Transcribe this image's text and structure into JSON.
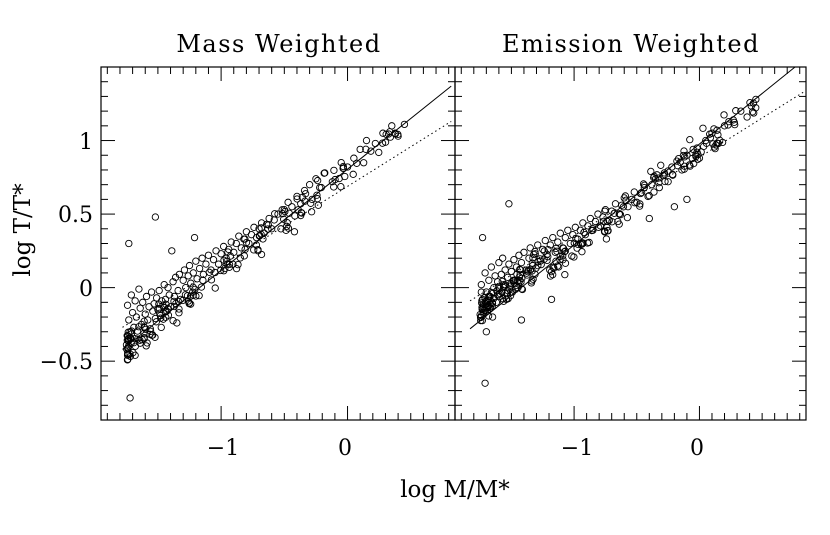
{
  "chart_data": [
    {
      "type": "scatter",
      "title": "Mass Weighted",
      "xlabel": "log M/M*",
      "ylabel": "log T/T*",
      "xlim": [
        -1.95,
        0.85
      ],
      "ylim": [
        -0.9,
        1.5
      ],
      "xticks": [
        -1,
        0
      ],
      "yticks": [
        -0.5,
        0,
        0.5,
        1
      ],
      "xtick_labels": [
        "−1",
        "0"
      ],
      "ytick_labels": [
        "−0.5",
        "0",
        "0.5",
        "1"
      ],
      "lines": [
        {
          "style": "solid",
          "x": [
            -1.78,
            0.82
          ],
          "y": [
            -0.42,
            1.37
          ]
        },
        {
          "style": "dotted",
          "x": [
            -1.78,
            0.82
          ],
          "y": [
            -0.27,
            1.13
          ]
        }
      ],
      "outliers": [
        {
          "x": -1.73,
          "y": 0.3
        },
        {
          "x": -1.52,
          "y": 0.48
        },
        {
          "x": -1.72,
          "y": -0.75
        },
        {
          "x": -1.68,
          "y": -0.46
        },
        {
          "x": -1.39,
          "y": 0.25
        },
        {
          "x": -1.21,
          "y": 0.34
        },
        {
          "x": -0.42,
          "y": 0.38
        },
        {
          "x": -0.81,
          "y": 0.26
        },
        {
          "x": -1.35,
          "y": -0.24
        }
      ],
      "points": [
        {
          "x": -1.74,
          "y": -0.12
        },
        {
          "x": -1.73,
          "y": -0.22
        },
        {
          "x": -1.72,
          "y": -0.3
        },
        {
          "x": -1.71,
          "y": -0.05
        },
        {
          "x": -1.7,
          "y": -0.17
        },
        {
          "x": -1.69,
          "y": -0.27
        },
        {
          "x": -1.68,
          "y": -0.09
        },
        {
          "x": -1.67,
          "y": -0.2
        },
        {
          "x": -1.66,
          "y": -0.35
        },
        {
          "x": -1.65,
          "y": -0.01
        },
        {
          "x": -1.64,
          "y": -0.14
        },
        {
          "x": -1.63,
          "y": -0.25
        },
        {
          "x": -1.62,
          "y": -0.1
        },
        {
          "x": -1.61,
          "y": -0.31
        },
        {
          "x": -1.6,
          "y": -0.18
        },
        {
          "x": -1.59,
          "y": -0.06
        },
        {
          "x": -1.58,
          "y": -0.22
        },
        {
          "x": -1.57,
          "y": -0.13
        },
        {
          "x": -1.56,
          "y": -0.28
        },
        {
          "x": -1.55,
          "y": -0.03
        },
        {
          "x": -1.54,
          "y": -0.16
        },
        {
          "x": -1.53,
          "y": -0.11
        },
        {
          "x": -1.52,
          "y": -0.21
        },
        {
          "x": -1.51,
          "y": -0.07
        },
        {
          "x": -1.5,
          "y": -0.15
        },
        {
          "x": -1.49,
          "y": -0.02
        },
        {
          "x": -1.48,
          "y": -0.19
        },
        {
          "x": -1.47,
          "y": -0.09
        },
        {
          "x": -1.46,
          "y": -0.12
        },
        {
          "x": -1.45,
          "y": 0.02
        },
        {
          "x": -1.44,
          "y": -0.08
        },
        {
          "x": -1.43,
          "y": -0.16
        },
        {
          "x": -1.42,
          "y": 0.0
        },
        {
          "x": -1.41,
          "y": -0.05
        },
        {
          "x": -1.4,
          "y": -0.13
        },
        {
          "x": -1.38,
          "y": 0.04
        },
        {
          "x": -1.37,
          "y": -0.06
        },
        {
          "x": -1.36,
          "y": 0.07
        },
        {
          "x": -1.34,
          "y": -0.02
        },
        {
          "x": -1.33,
          "y": 0.09
        },
        {
          "x": -1.32,
          "y": -0.08
        },
        {
          "x": -1.3,
          "y": 0.05
        },
        {
          "x": -1.29,
          "y": 0.12
        },
        {
          "x": -1.28,
          "y": 0.0
        },
        {
          "x": -1.26,
          "y": 0.08
        },
        {
          "x": -1.25,
          "y": 0.15
        },
        {
          "x": -1.24,
          "y": 0.03
        },
        {
          "x": -1.22,
          "y": 0.1
        },
        {
          "x": -1.2,
          "y": 0.18
        },
        {
          "x": -1.19,
          "y": 0.06
        },
        {
          "x": -1.17,
          "y": 0.13
        },
        {
          "x": -1.15,
          "y": 0.2
        },
        {
          "x": -1.14,
          "y": 0.09
        },
        {
          "x": -1.12,
          "y": 0.16
        },
        {
          "x": -1.1,
          "y": 0.22
        },
        {
          "x": -1.08,
          "y": 0.12
        },
        {
          "x": -1.06,
          "y": 0.19
        },
        {
          "x": -1.04,
          "y": 0.25
        },
        {
          "x": -1.02,
          "y": 0.16
        },
        {
          "x": -1.0,
          "y": 0.23
        },
        {
          "x": -0.98,
          "y": 0.28
        },
        {
          "x": -0.96,
          "y": 0.2
        },
        {
          "x": -0.94,
          "y": 0.26
        },
        {
          "x": -0.92,
          "y": 0.31
        },
        {
          "x": -0.9,
          "y": 0.24
        },
        {
          "x": -0.88,
          "y": 0.3
        },
        {
          "x": -0.86,
          "y": 0.35
        },
        {
          "x": -0.84,
          "y": 0.27
        },
        {
          "x": -0.82,
          "y": 0.33
        },
        {
          "x": -0.8,
          "y": 0.38
        },
        {
          "x": -0.78,
          "y": 0.3
        },
        {
          "x": -0.76,
          "y": 0.36
        },
        {
          "x": -0.74,
          "y": 0.41
        },
        {
          "x": -0.72,
          "y": 0.34
        },
        {
          "x": -0.7,
          "y": 0.4
        },
        {
          "x": -0.68,
          "y": 0.44
        },
        {
          "x": -0.66,
          "y": 0.37
        },
        {
          "x": -0.64,
          "y": 0.43
        },
        {
          "x": -0.62,
          "y": 0.47
        },
        {
          "x": -0.6,
          "y": 0.4
        },
        {
          "x": -0.58,
          "y": 0.46
        },
        {
          "x": -0.55,
          "y": 0.5
        },
        {
          "x": -0.5,
          "y": 0.53
        },
        {
          "x": -0.47,
          "y": 0.58
        },
        {
          "x": -0.44,
          "y": 0.55
        },
        {
          "x": -0.4,
          "y": 0.62
        },
        {
          "x": -0.37,
          "y": 0.57
        },
        {
          "x": -0.34,
          "y": 0.66
        },
        {
          "x": -0.3,
          "y": 0.7
        },
        {
          "x": -0.28,
          "y": 0.6
        },
        {
          "x": -0.25,
          "y": 0.74
        },
        {
          "x": -0.22,
          "y": 0.68
        },
        {
          "x": -0.18,
          "y": 0.78
        },
        {
          "x": -0.12,
          "y": 0.72
        },
        {
          "x": -0.05,
          "y": 0.85
        },
        {
          "x": 0.0,
          "y": 0.82
        },
        {
          "x": 0.05,
          "y": 0.88
        },
        {
          "x": 0.1,
          "y": 0.94
        },
        {
          "x": 0.15,
          "y": 1.0
        },
        {
          "x": 0.22,
          "y": 0.98
        },
        {
          "x": 0.28,
          "y": 1.05
        },
        {
          "x": 0.35,
          "y": 1.1
        },
        {
          "x": 0.4,
          "y": 1.03
        },
        {
          "x": 0.45,
          "y": 1.11
        }
      ]
    },
    {
      "type": "scatter",
      "title": "Emission Weighted",
      "xlabel": "log M/M*",
      "ylabel": "log T/T*",
      "xlim": [
        -1.95,
        0.85
      ],
      "ylim": [
        -0.9,
        1.5
      ],
      "xticks": [
        -1,
        0
      ],
      "yticks": [
        -0.5,
        0,
        0.5,
        1
      ],
      "xtick_labels": [
        "−1",
        "0"
      ],
      "lines": [
        {
          "style": "solid",
          "x": [
            -1.83,
            0.85
          ],
          "y": [
            -0.28,
            1.56
          ]
        },
        {
          "style": "dotted",
          "x": [
            -1.83,
            0.85
          ],
          "y": [
            -0.09,
            1.34
          ]
        }
      ],
      "outliers": [
        {
          "x": -1.73,
          "y": 0.34
        },
        {
          "x": -1.52,
          "y": 0.57
        },
        {
          "x": -1.71,
          "y": -0.65
        },
        {
          "x": -1.7,
          "y": -0.3
        },
        {
          "x": -1.42,
          "y": -0.22
        },
        {
          "x": -1.18,
          "y": -0.08
        },
        {
          "x": -0.4,
          "y": 0.47
        },
        {
          "x": -0.2,
          "y": 0.55
        },
        {
          "x": -0.1,
          "y": 0.6
        }
      ],
      "points": [
        {
          "x": -1.74,
          "y": 0.02
        },
        {
          "x": -1.73,
          "y": -0.08
        },
        {
          "x": -1.72,
          "y": -0.18
        },
        {
          "x": -1.71,
          "y": 0.1
        },
        {
          "x": -1.7,
          "y": -0.03
        },
        {
          "x": -1.69,
          "y": -0.13
        },
        {
          "x": -1.68,
          "y": 0.05
        },
        {
          "x": -1.67,
          "y": -0.06
        },
        {
          "x": -1.66,
          "y": 0.14
        },
        {
          "x": -1.65,
          "y": -0.2
        },
        {
          "x": -1.64,
          "y": 0.0
        },
        {
          "x": -1.63,
          "y": 0.08
        },
        {
          "x": -1.62,
          "y": -0.1
        },
        {
          "x": -1.61,
          "y": 0.04
        },
        {
          "x": -1.6,
          "y": 0.17
        },
        {
          "x": -1.59,
          "y": -0.04
        },
        {
          "x": -1.58,
          "y": 0.09
        },
        {
          "x": -1.57,
          "y": 0.2
        },
        {
          "x": -1.56,
          "y": 0.02
        },
        {
          "x": -1.55,
          "y": 0.12
        },
        {
          "x": -1.54,
          "y": -0.08
        },
        {
          "x": -1.53,
          "y": 0.07
        },
        {
          "x": -1.52,
          "y": 0.16
        },
        {
          "x": -1.51,
          "y": 0.01
        },
        {
          "x": -1.5,
          "y": 0.11
        },
        {
          "x": -1.48,
          "y": 0.19
        },
        {
          "x": -1.47,
          "y": 0.05
        },
        {
          "x": -1.46,
          "y": 0.14
        },
        {
          "x": -1.44,
          "y": 0.22
        },
        {
          "x": -1.43,
          "y": 0.09
        },
        {
          "x": -1.42,
          "y": 0.17
        },
        {
          "x": -1.4,
          "y": 0.24
        },
        {
          "x": -1.38,
          "y": 0.12
        },
        {
          "x": -1.36,
          "y": 0.2
        },
        {
          "x": -1.35,
          "y": 0.27
        },
        {
          "x": -1.33,
          "y": 0.15
        },
        {
          "x": -1.31,
          "y": 0.23
        },
        {
          "x": -1.29,
          "y": 0.29
        },
        {
          "x": -1.27,
          "y": 0.18
        },
        {
          "x": -1.25,
          "y": 0.26
        },
        {
          "x": -1.23,
          "y": 0.32
        },
        {
          "x": -1.21,
          "y": 0.21
        },
        {
          "x": -1.19,
          "y": 0.29
        },
        {
          "x": -1.17,
          "y": 0.34
        },
        {
          "x": -1.15,
          "y": 0.24
        },
        {
          "x": -1.13,
          "y": 0.31
        },
        {
          "x": -1.11,
          "y": 0.37
        },
        {
          "x": -1.09,
          "y": 0.27
        },
        {
          "x": -1.07,
          "y": 0.34
        },
        {
          "x": -1.05,
          "y": 0.39
        },
        {
          "x": -1.03,
          "y": 0.3
        },
        {
          "x": -1.01,
          "y": 0.36
        },
        {
          "x": -0.99,
          "y": 0.41
        },
        {
          "x": -0.97,
          "y": 0.33
        },
        {
          "x": -0.95,
          "y": 0.39
        },
        {
          "x": -0.93,
          "y": 0.44
        },
        {
          "x": -0.91,
          "y": 0.36
        },
        {
          "x": -0.89,
          "y": 0.42
        },
        {
          "x": -0.87,
          "y": 0.47
        },
        {
          "x": -0.85,
          "y": 0.39
        },
        {
          "x": -0.83,
          "y": 0.45
        },
        {
          "x": -0.81,
          "y": 0.5
        },
        {
          "x": -0.79,
          "y": 0.42
        },
        {
          "x": -0.77,
          "y": 0.48
        },
        {
          "x": -0.75,
          "y": 0.53
        },
        {
          "x": -0.72,
          "y": 0.46
        },
        {
          "x": -0.7,
          "y": 0.52
        },
        {
          "x": -0.67,
          "y": 0.57
        },
        {
          "x": -0.64,
          "y": 0.5
        },
        {
          "x": -0.62,
          "y": 0.56
        },
        {
          "x": -0.6,
          "y": 0.61
        },
        {
          "x": -0.57,
          "y": 0.55
        },
        {
          "x": -0.54,
          "y": 0.6
        },
        {
          "x": -0.52,
          "y": 0.65
        },
        {
          "x": -0.5,
          "y": 0.58
        },
        {
          "x": -0.47,
          "y": 0.64
        },
        {
          "x": -0.44,
          "y": 0.68
        },
        {
          "x": -0.41,
          "y": 0.62
        },
        {
          "x": -0.38,
          "y": 0.7
        },
        {
          "x": -0.35,
          "y": 0.74
        },
        {
          "x": -0.32,
          "y": 0.68
        },
        {
          "x": -0.28,
          "y": 0.78
        },
        {
          "x": -0.25,
          "y": 0.72
        },
        {
          "x": -0.22,
          "y": 0.82
        },
        {
          "x": -0.18,
          "y": 0.86
        },
        {
          "x": -0.14,
          "y": 0.8
        },
        {
          "x": -0.1,
          "y": 0.9
        },
        {
          "x": -0.05,
          "y": 0.94
        },
        {
          "x": 0.0,
          "y": 0.88
        },
        {
          "x": 0.05,
          "y": 1.0
        },
        {
          "x": 0.1,
          "y": 1.05
        },
        {
          "x": 0.15,
          "y": 0.98
        },
        {
          "x": 0.2,
          "y": 1.1
        },
        {
          "x": 0.27,
          "y": 1.14
        },
        {
          "x": 0.33,
          "y": 1.2
        },
        {
          "x": 0.38,
          "y": 1.16
        },
        {
          "x": 0.45,
          "y": 1.28
        }
      ]
    }
  ]
}
